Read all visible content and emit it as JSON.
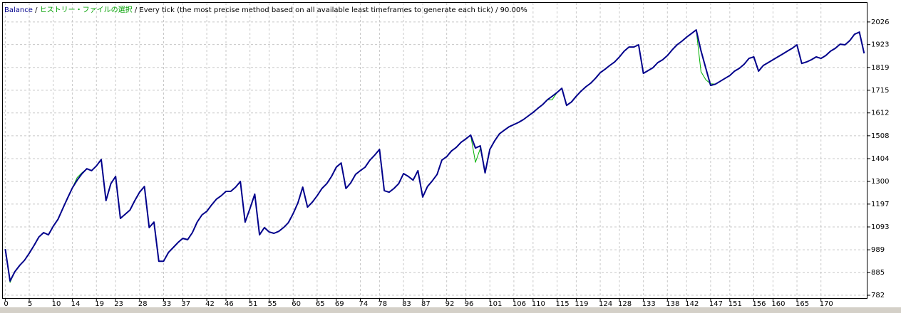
{
  "chart_data": {
    "type": "line",
    "separator": "/",
    "model": "Every tick (the most precise method based on all available least timeframes to generate each tick)",
    "quality": "90.00%",
    "xlim": [
      -0.5,
      179.7
    ],
    "xticks": [
      0,
      5,
      10,
      14,
      19,
      23,
      28,
      33,
      37,
      42,
      46,
      51,
      55,
      60,
      65,
      69,
      74,
      78,
      83,
      87,
      92,
      96,
      101,
      106,
      110,
      115,
      119,
      124,
      128,
      133,
      138,
      142,
      147,
      151,
      156,
      160,
      165,
      170
    ],
    "ylim": [
      766,
      2113
    ],
    "yticks": [
      782,
      885,
      989,
      1093,
      1197,
      1300,
      1404,
      1508,
      1612,
      1715,
      1819,
      1923,
      2026
    ],
    "grid": true,
    "series": [
      {
        "name": "ヒストリー・ファイルの選択",
        "color": "#00b000",
        "width": 1,
        "values": [
          992,
          840,
          889,
          918,
          941,
          973,
          1009,
          1047,
          1067,
          1057,
          1096,
          1128,
          1177,
          1225,
          1271,
          1318,
          1340,
          1358,
          1349,
          1371,
          1400,
          1213,
          1290,
          1323,
          1132,
          1151,
          1170,
          1213,
          1251,
          1277,
          1090,
          1115,
          937,
          937,
          976,
          999,
          1022,
          1041,
          1035,
          1067,
          1115,
          1148,
          1164,
          1193,
          1219,
          1235,
          1255,
          1255,
          1274,
          1300,
          1115,
          1177,
          1242,
          1057,
          1090,
          1070,
          1064,
          1073,
          1090,
          1112,
          1154,
          1203,
          1274,
          1183,
          1206,
          1235,
          1268,
          1290,
          1323,
          1365,
          1384,
          1268,
          1293,
          1332,
          1349,
          1365,
          1397,
          1420,
          1446,
          1258,
          1251,
          1268,
          1290,
          1336,
          1323,
          1306,
          1349,
          1229,
          1277,
          1303,
          1332,
          1397,
          1413,
          1439,
          1455,
          1478,
          1494,
          1511,
          1387,
          1450,
          1339,
          1446,
          1485,
          1517,
          1533,
          1549,
          1559,
          1569,
          1582,
          1598,
          1614,
          1633,
          1650,
          1672,
          1672,
          1705,
          1724,
          1646,
          1662,
          1688,
          1711,
          1731,
          1747,
          1769,
          1795,
          1811,
          1828,
          1844,
          1867,
          1893,
          1912,
          1912,
          1922,
          1792,
          1805,
          1818,
          1841,
          1854,
          1873,
          1899,
          1922,
          1938,
          1957,
          1973,
          1990,
          1800,
          1763,
          1745,
          1743,
          1756,
          1769,
          1782,
          1802,
          1815,
          1834,
          1860,
          1867,
          1802,
          1828,
          1841,
          1854,
          1867,
          1880,
          1893,
          1906,
          1922,
          1837,
          1844,
          1854,
          1867,
          1860,
          1873,
          1893,
          1906,
          1925,
          1922,
          1941,
          1970,
          1980,
          1883
        ]
      },
      {
        "name": "Balance",
        "color": "#00008b",
        "width": 2,
        "values": [
          992,
          847,
          889,
          918,
          941,
          973,
          1009,
          1047,
          1067,
          1057,
          1096,
          1128,
          1177,
          1225,
          1271,
          1306,
          1336,
          1358,
          1349,
          1371,
          1400,
          1213,
          1290,
          1323,
          1132,
          1151,
          1170,
          1213,
          1251,
          1277,
          1090,
          1115,
          937,
          937,
          976,
          999,
          1022,
          1041,
          1035,
          1067,
          1115,
          1148,
          1164,
          1193,
          1219,
          1235,
          1255,
          1255,
          1274,
          1300,
          1115,
          1177,
          1242,
          1057,
          1090,
          1070,
          1064,
          1073,
          1090,
          1112,
          1154,
          1203,
          1274,
          1183,
          1206,
          1235,
          1268,
          1290,
          1323,
          1365,
          1384,
          1268,
          1293,
          1332,
          1349,
          1365,
          1397,
          1420,
          1446,
          1258,
          1251,
          1268,
          1290,
          1336,
          1323,
          1306,
          1349,
          1229,
          1277,
          1303,
          1332,
          1397,
          1413,
          1439,
          1455,
          1478,
          1494,
          1511,
          1452,
          1462,
          1339,
          1446,
          1485,
          1517,
          1533,
          1549,
          1559,
          1569,
          1582,
          1598,
          1614,
          1633,
          1650,
          1672,
          1688,
          1705,
          1724,
          1646,
          1662,
          1688,
          1711,
          1731,
          1747,
          1769,
          1795,
          1811,
          1828,
          1844,
          1867,
          1893,
          1912,
          1912,
          1922,
          1792,
          1805,
          1818,
          1841,
          1854,
          1873,
          1899,
          1922,
          1938,
          1957,
          1973,
          1990,
          1895,
          1815,
          1737,
          1743,
          1756,
          1769,
          1782,
          1802,
          1815,
          1834,
          1860,
          1867,
          1802,
          1828,
          1841,
          1854,
          1867,
          1880,
          1893,
          1906,
          1922,
          1837,
          1844,
          1854,
          1867,
          1860,
          1873,
          1893,
          1906,
          1925,
          1922,
          1941,
          1970,
          1980,
          1883
        ]
      }
    ]
  }
}
